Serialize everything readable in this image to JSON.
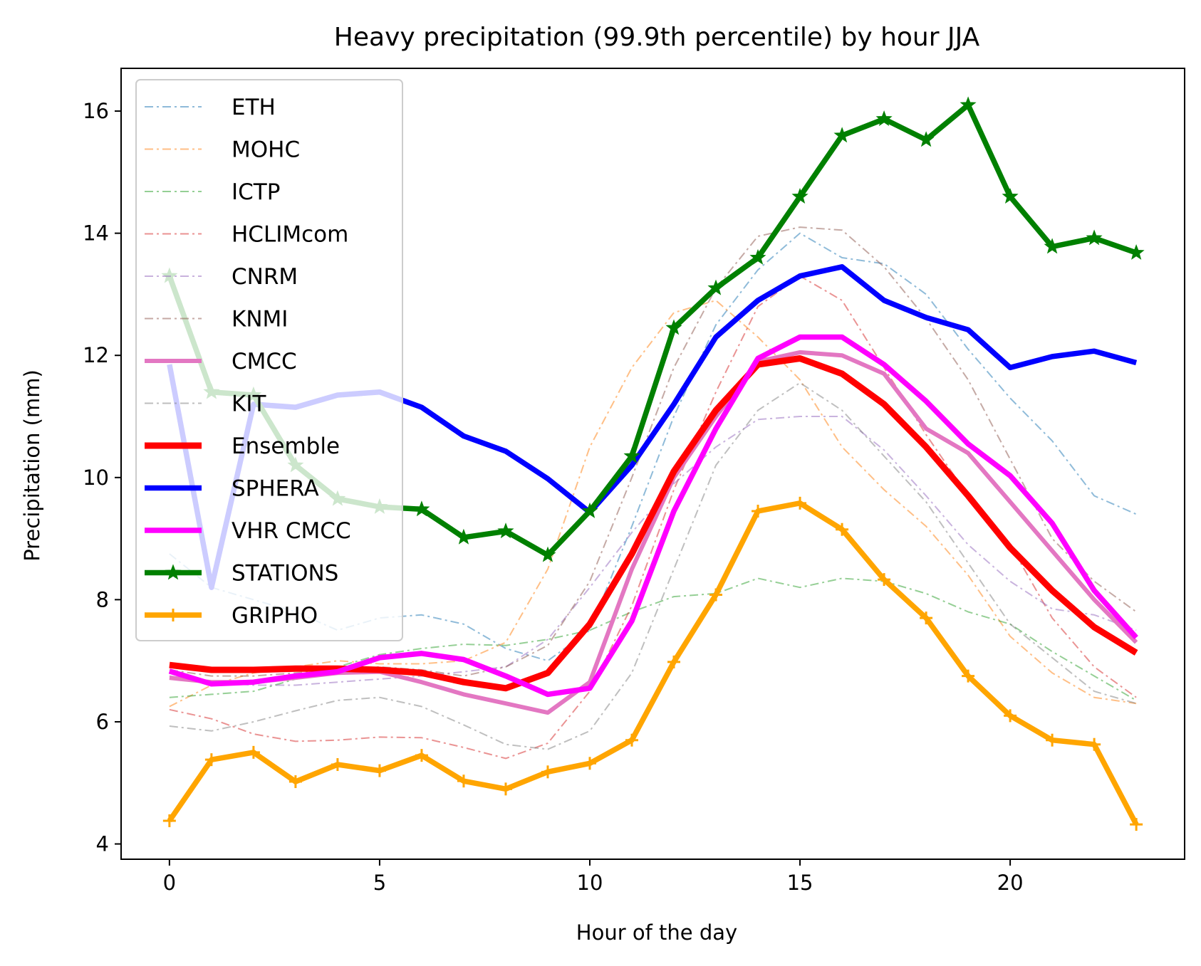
{
  "chart_data": {
    "type": "line",
    "title": "Heavy precipitation (99.9th percentile) by hour JJA",
    "xlabel": "Hour of the day",
    "ylabel": "Precipitation (mm)",
    "xlim": [
      -1.15,
      24.15
    ],
    "ylim": [
      3.75,
      16.7
    ],
    "xticks": [
      0,
      5,
      10,
      15,
      20
    ],
    "yticks": [
      4,
      6,
      8,
      10,
      12,
      14,
      16
    ],
    "grid": false,
    "legend_position": "upper-left",
    "x": [
      0,
      1,
      2,
      3,
      4,
      5,
      6,
      7,
      8,
      9,
      10,
      11,
      12,
      13,
      14,
      15,
      16,
      17,
      18,
      19,
      20,
      21,
      22,
      23
    ],
    "series": [
      {
        "name": "ETH",
        "color": "#1f77b4",
        "style": "dashdot",
        "width": 2,
        "opacity": 0.5,
        "marker": "none",
        "values": [
          8.75,
          8.2,
          8.0,
          7.8,
          7.5,
          7.7,
          7.75,
          7.6,
          7.2,
          7.0,
          7.5,
          9.2,
          11.0,
          12.5,
          13.4,
          14.0,
          13.6,
          13.5,
          13.0,
          12.1,
          11.3,
          10.6,
          9.7,
          9.4
        ]
      },
      {
        "name": "MOHC",
        "color": "#ff7f0e",
        "style": "dashdot",
        "width": 2,
        "opacity": 0.5,
        "marker": "none",
        "values": [
          6.25,
          6.6,
          6.8,
          6.9,
          7.0,
          6.95,
          6.95,
          7.0,
          7.3,
          8.5,
          10.5,
          11.8,
          12.7,
          12.9,
          12.3,
          11.6,
          10.5,
          9.8,
          9.2,
          8.4,
          7.4,
          6.8,
          6.4,
          6.3
        ]
      },
      {
        "name": "ICTP",
        "color": "#2ca02c",
        "style": "dashdot",
        "width": 2,
        "opacity": 0.5,
        "marker": "none",
        "values": [
          6.4,
          6.45,
          6.5,
          6.7,
          6.9,
          7.1,
          7.2,
          7.27,
          7.25,
          7.35,
          7.5,
          7.8,
          8.05,
          8.1,
          8.35,
          8.2,
          8.35,
          8.3,
          8.1,
          7.8,
          7.6,
          7.15,
          6.75,
          6.35
        ]
      },
      {
        "name": "HCLIMcom",
        "color": "#d62728",
        "style": "dashdot",
        "width": 2,
        "opacity": 0.5,
        "marker": "none",
        "values": [
          6.2,
          6.05,
          5.8,
          5.68,
          5.7,
          5.75,
          5.74,
          5.58,
          5.4,
          5.65,
          6.5,
          7.9,
          9.8,
          11.4,
          12.8,
          13.3,
          12.9,
          11.8,
          10.7,
          9.7,
          8.9,
          7.7,
          6.9,
          6.4
        ]
      },
      {
        "name": "CNRM",
        "color": "#9467bd",
        "style": "dashdot",
        "width": 2,
        "opacity": 0.5,
        "marker": "none",
        "values": [
          6.75,
          6.65,
          6.6,
          6.6,
          6.65,
          6.7,
          6.75,
          6.82,
          6.9,
          7.35,
          8.2,
          9.1,
          9.9,
          10.5,
          10.95,
          11.0,
          11.0,
          10.45,
          9.7,
          8.9,
          8.3,
          7.85,
          7.75,
          7.5
        ]
      },
      {
        "name": "KNMI",
        "color": "#8c564b",
        "style": "dashdot",
        "width": 2,
        "opacity": 0.5,
        "marker": "none",
        "values": [
          6.85,
          6.75,
          6.75,
          6.8,
          6.85,
          6.9,
          6.85,
          6.75,
          6.9,
          7.25,
          8.3,
          10.0,
          11.8,
          13.1,
          13.95,
          14.1,
          14.05,
          13.45,
          12.6,
          11.6,
          10.3,
          9.0,
          8.3,
          7.8
        ]
      },
      {
        "name": "CMCC",
        "color": "#e377c2",
        "style": "solid",
        "width": 6,
        "opacity": 1.0,
        "marker": "none",
        "values": [
          6.72,
          6.65,
          6.65,
          6.72,
          6.8,
          6.82,
          6.65,
          6.45,
          6.3,
          6.15,
          6.65,
          8.5,
          10.0,
          11.0,
          11.9,
          12.05,
          12.0,
          11.7,
          10.8,
          10.4,
          9.6,
          8.8,
          8.0,
          7.3
        ]
      },
      {
        "name": "KIT",
        "color": "#7f7f7f",
        "style": "dashdot",
        "width": 2,
        "opacity": 0.5,
        "marker": "none",
        "values": [
          5.93,
          5.85,
          6.0,
          6.18,
          6.35,
          6.4,
          6.25,
          5.95,
          5.63,
          5.55,
          5.85,
          6.8,
          8.5,
          10.2,
          11.1,
          11.55,
          11.1,
          10.35,
          9.6,
          8.6,
          7.6,
          7.05,
          6.5,
          6.3
        ]
      },
      {
        "name": "Ensemble",
        "color": "#ff0000",
        "style": "solid",
        "width": 9,
        "opacity": 1.0,
        "marker": "none",
        "values": [
          6.93,
          6.85,
          6.85,
          6.87,
          6.87,
          6.85,
          6.8,
          6.65,
          6.55,
          6.8,
          7.6,
          8.75,
          10.1,
          11.1,
          11.85,
          11.95,
          11.7,
          11.2,
          10.5,
          9.7,
          8.85,
          8.15,
          7.55,
          7.13
        ]
      },
      {
        "name": "SPHERA",
        "color": "#0000ff",
        "style": "solid",
        "width": 7.5,
        "opacity": 1.0,
        "marker": "none",
        "values": [
          11.85,
          8.2,
          11.2,
          11.15,
          11.35,
          11.4,
          11.15,
          10.68,
          10.43,
          9.98,
          9.43,
          10.2,
          11.2,
          12.3,
          12.9,
          13.3,
          13.45,
          12.9,
          12.62,
          12.42,
          11.8,
          11.98,
          12.07,
          11.88
        ]
      },
      {
        "name": "VHR CMCC",
        "color": "#ff00ff",
        "style": "solid",
        "width": 7.5,
        "opacity": 1.0,
        "marker": "none",
        "values": [
          6.83,
          6.62,
          6.65,
          6.75,
          6.82,
          7.05,
          7.12,
          7.02,
          6.75,
          6.45,
          6.55,
          7.65,
          9.45,
          10.8,
          11.95,
          12.3,
          12.3,
          11.85,
          11.25,
          10.55,
          10.03,
          9.25,
          8.15,
          7.38
        ]
      },
      {
        "name": "STATIONS",
        "color": "#008000",
        "style": "solid",
        "width": 7.5,
        "opacity": 1.0,
        "marker": "star",
        "values": [
          13.3,
          11.4,
          11.35,
          10.2,
          9.65,
          9.52,
          9.48,
          9.02,
          9.12,
          8.73,
          9.45,
          10.35,
          12.45,
          13.1,
          13.6,
          14.6,
          15.6,
          15.87,
          15.53,
          16.1,
          14.6,
          13.78,
          13.92,
          13.68
        ]
      },
      {
        "name": "GRIPHO",
        "color": "#ffa500",
        "style": "solid",
        "width": 7.5,
        "opacity": 1.0,
        "marker": "plus",
        "values": [
          4.38,
          5.38,
          5.5,
          5.02,
          5.3,
          5.2,
          5.45,
          5.03,
          4.9,
          5.18,
          5.32,
          5.7,
          6.98,
          8.08,
          9.45,
          9.58,
          9.15,
          8.33,
          7.7,
          6.75,
          6.1,
          5.7,
          5.63,
          4.32
        ]
      }
    ]
  }
}
